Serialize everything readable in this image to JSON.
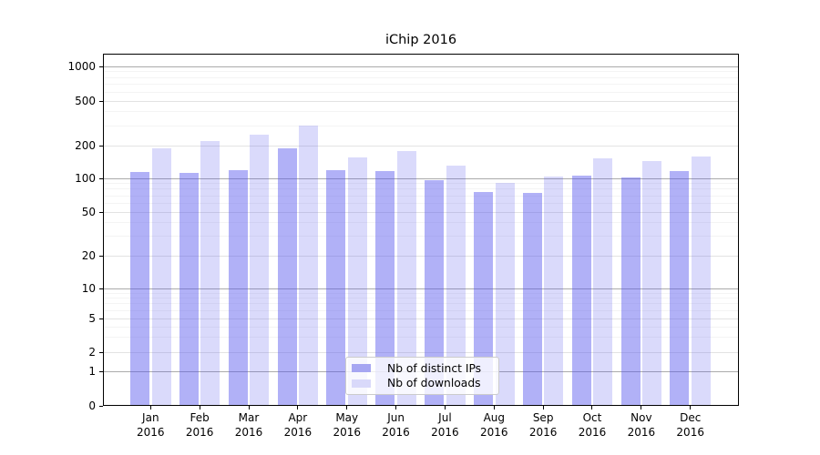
{
  "title": "iChip 2016",
  "chart_data": {
    "type": "bar",
    "title": "iChip 2016",
    "categories": [
      "Jan 2016",
      "Feb 2016",
      "Mar 2016",
      "Apr 2016",
      "May 2016",
      "Jun 2016",
      "Jul 2016",
      "Aug 2016",
      "Sep 2016",
      "Oct 2016",
      "Nov 2016",
      "Dec 2016"
    ],
    "series": [
      {
        "name": "Nb of distinct IPs",
        "color": "#a6a6f2",
        "values": [
          114,
          112,
          120,
          187,
          119,
          117,
          97,
          76,
          74,
          106,
          102,
          116
        ]
      },
      {
        "name": "Nb of downloads",
        "color": "#d9d9fa",
        "values": [
          189,
          218,
          251,
          302,
          157,
          177,
          131,
          91,
          103,
          152,
          143,
          159
        ]
      }
    ],
    "xlabel": "",
    "ylabel": "",
    "yscale": "log-with-zero",
    "y_ticks": [
      0,
      1,
      2,
      5,
      10,
      20,
      50,
      100,
      200,
      500,
      1000
    ],
    "ylim": [
      0,
      1200
    ],
    "grid": true,
    "legend_position": "lower-center"
  },
  "colors": {
    "bar_distinct_ips_fill": "rgba(82,82,238,0.45)",
    "bar_downloads_fill": "rgba(82,82,238,0.21)",
    "grid_major": "#ababab",
    "grid_minor": "#e3e3e3",
    "grid_subminor": "#f4f4f4",
    "spine": "#000000",
    "legend_border": "#cccccc"
  }
}
